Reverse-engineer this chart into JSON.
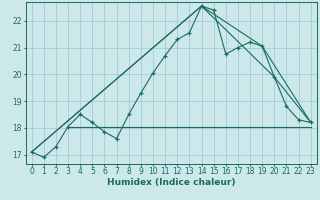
{
  "xlabel": "Humidex (Indice chaleur)",
  "xlim": [
    -0.5,
    23.5
  ],
  "ylim": [
    16.65,
    22.7
  ],
  "bg_color": "#cce8ea",
  "grid_color": "#a8d0d3",
  "line_color": "#1a6b5e",
  "xticks": [
    0,
    1,
    2,
    3,
    4,
    5,
    6,
    7,
    8,
    9,
    10,
    11,
    12,
    13,
    14,
    15,
    16,
    17,
    18,
    19,
    20,
    21,
    22,
    23
  ],
  "yticks": [
    17,
    18,
    19,
    20,
    21,
    22
  ],
  "line1_x": [
    0,
    1,
    2,
    3,
    4,
    5,
    6,
    7,
    8,
    9,
    10,
    11,
    12,
    13,
    14,
    15,
    16,
    17,
    18,
    19,
    20,
    21,
    22,
    23
  ],
  "line1_y": [
    17.1,
    16.9,
    17.3,
    18.05,
    18.5,
    18.2,
    17.85,
    17.6,
    18.5,
    19.3,
    20.05,
    20.7,
    21.3,
    21.55,
    22.55,
    22.4,
    20.75,
    21.0,
    21.2,
    21.05,
    19.9,
    18.8,
    18.3,
    18.2
  ],
  "line2_x": [
    0,
    14,
    19,
    23
  ],
  "line2_y": [
    17.1,
    22.55,
    21.05,
    18.2
  ],
  "line3_x": [
    0,
    14,
    20,
    23
  ],
  "line3_y": [
    17.1,
    22.55,
    19.9,
    18.2
  ],
  "line4_x": [
    3,
    23
  ],
  "line4_y": [
    18.05,
    18.05
  ]
}
